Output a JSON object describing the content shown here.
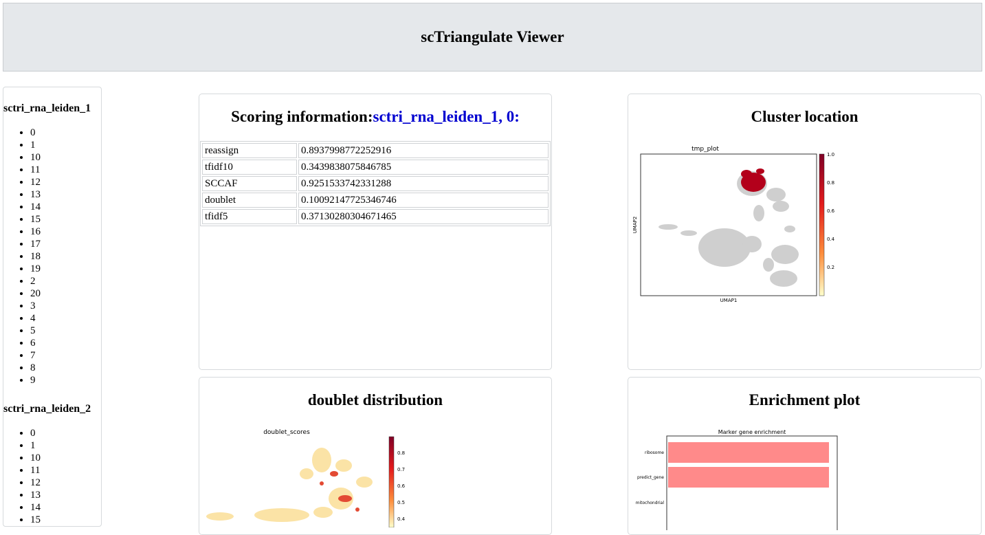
{
  "header": {
    "title": "scTriangulate Viewer"
  },
  "sidebar": {
    "groups": [
      {
        "title": "sctri_rna_leiden_1",
        "items": [
          "0",
          "1",
          "10",
          "11",
          "12",
          "13",
          "14",
          "15",
          "16",
          "17",
          "18",
          "19",
          "2",
          "20",
          "3",
          "4",
          "5",
          "6",
          "7",
          "8",
          "9"
        ]
      },
      {
        "title": "sctri_rna_leiden_2",
        "items": [
          "0",
          "1",
          "10",
          "11",
          "12",
          "13",
          "14",
          "15"
        ]
      }
    ]
  },
  "scoring": {
    "title_prefix": "Scoring information:",
    "title_highlight": "sctri_rna_leiden_1, 0:",
    "rows": [
      {
        "key": "reassign",
        "value": "0.8937998772252916"
      },
      {
        "key": "tfidf10",
        "value": "0.3439838075846785"
      },
      {
        "key": "SCCAF",
        "value": "0.9251533742331288"
      },
      {
        "key": "doublet",
        "value": "0.10092147725346746"
      },
      {
        "key": "tfidf5",
        "value": "0.37130280304671465"
      }
    ]
  },
  "cluster_location": {
    "title": "Cluster location",
    "plot_title": "tmp_plot",
    "xlabel": "UMAP1",
    "ylabel": "UMAP2",
    "colorbar_ticks": [
      "1.0",
      "0.8",
      "0.6",
      "0.4",
      "0.2"
    ]
  },
  "doublet": {
    "title": "doublet distribution",
    "plot_title": "doublet_scores",
    "colorbar_ticks": [
      "0.8",
      "0.7",
      "0.6",
      "0.5",
      "0.4"
    ]
  },
  "enrichment": {
    "title": "Enrichment plot",
    "plot_title": "Marker gene enrichment",
    "bars": [
      "ribosome",
      "predict_gene",
      "mitochondrial"
    ]
  }
}
